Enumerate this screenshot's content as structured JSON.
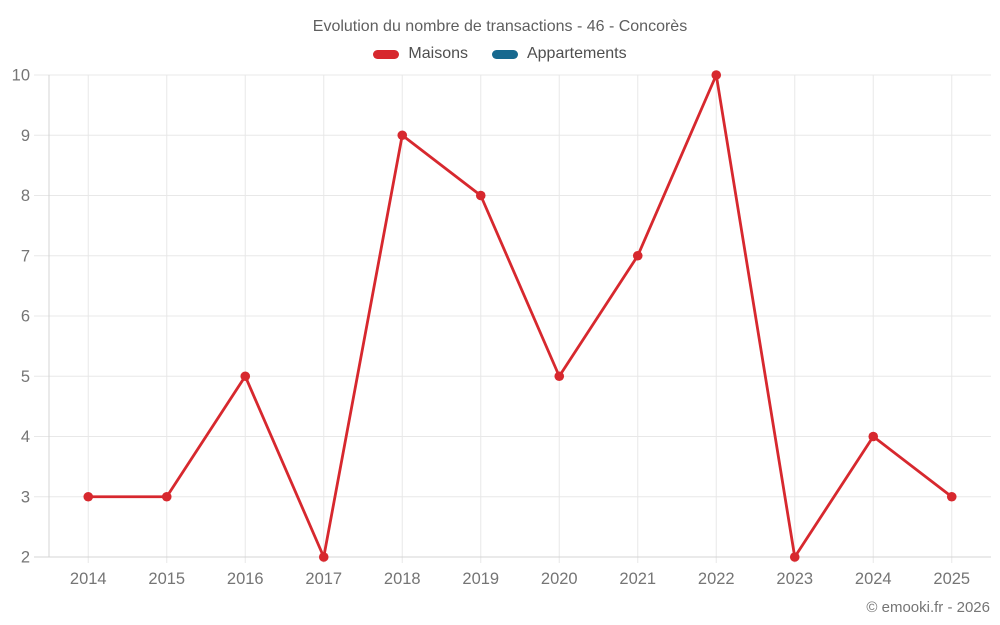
{
  "title": "Evolution du nombre de transactions - 46 - Concorès",
  "legend": [
    {
      "label": "Maisons",
      "color": "#d7282e"
    },
    {
      "label": "Appartements",
      "color": "#17698f"
    }
  ],
  "copyright": "© emooki.fr - 2026",
  "chart_data": {
    "type": "line",
    "title": "Evolution du nombre de transactions - 46 - Concorès",
    "x": [
      "2014",
      "2015",
      "2016",
      "2017",
      "2018",
      "2019",
      "2020",
      "2021",
      "2022",
      "2023",
      "2024",
      "2025"
    ],
    "series": [
      {
        "name": "Maisons",
        "color": "#d7282e",
        "values": [
          3,
          3,
          5,
          2,
          9,
          8,
          5,
          7,
          10,
          2,
          4,
          3
        ]
      },
      {
        "name": "Appartements",
        "color": "#17698f",
        "values": []
      }
    ],
    "xlabel": "",
    "ylabel": "",
    "ylim": [
      2,
      10
    ],
    "yticks": [
      2,
      3,
      4,
      5,
      6,
      7,
      8,
      9,
      10
    ],
    "grid": true,
    "legend_position": "top"
  },
  "style": {
    "grid_color": "#e8e8e8",
    "axis_color": "#d4d4d4",
    "tick_label_color": "#757575"
  }
}
